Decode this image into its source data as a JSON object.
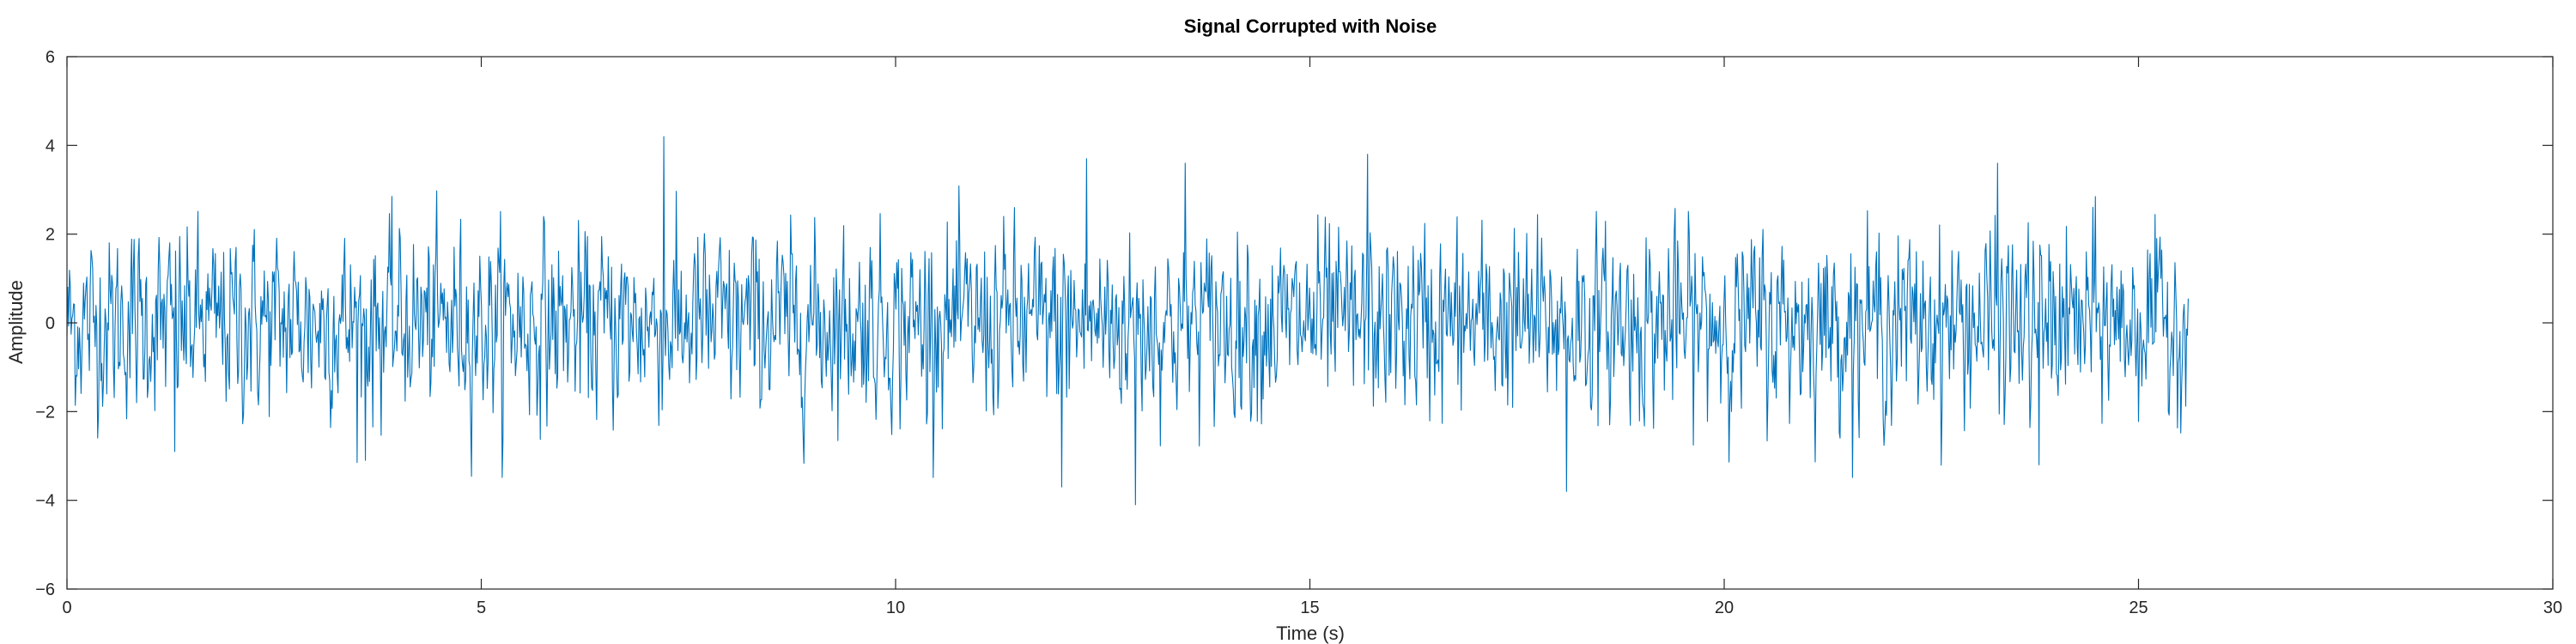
{
  "chart_data": {
    "type": "line",
    "title": "Signal Corrupted with Noise",
    "xlabel": "Time (s)",
    "ylabel": "Amplitude",
    "xlim": [
      0,
      30
    ],
    "ylim": [
      -6,
      6
    ],
    "xticks": [
      0,
      5,
      10,
      15,
      20,
      25,
      30
    ],
    "yticks": [
      -6,
      -4,
      -2,
      0,
      2,
      4,
      6
    ],
    "grid": false,
    "legend": "none",
    "series": [
      {
        "color": "#0072BD",
        "x_range": [
          0,
          25.6
        ],
        "n_points": 2560,
        "std": 0.95,
        "peaks": [
          {
            "x": 7.2,
            "y": 4.2
          },
          {
            "x": 15.7,
            "y": 3.8
          },
          {
            "x": 12.3,
            "y": 3.7
          },
          {
            "x": 13.5,
            "y": 3.6
          },
          {
            "x": 23.3,
            "y": 3.6
          },
          {
            "x": 18.1,
            "y": 3.5
          },
          {
            "x": 12.9,
            "y": -4.1
          },
          {
            "x": 12.0,
            "y": -3.7
          },
          {
            "x": 18.1,
            "y": -3.8
          },
          {
            "x": 3.6,
            "y": -3.1
          },
          {
            "x": 1.3,
            "y": -2.9
          },
          {
            "x": 23.8,
            "y": -3.2
          }
        ]
      }
    ]
  }
}
